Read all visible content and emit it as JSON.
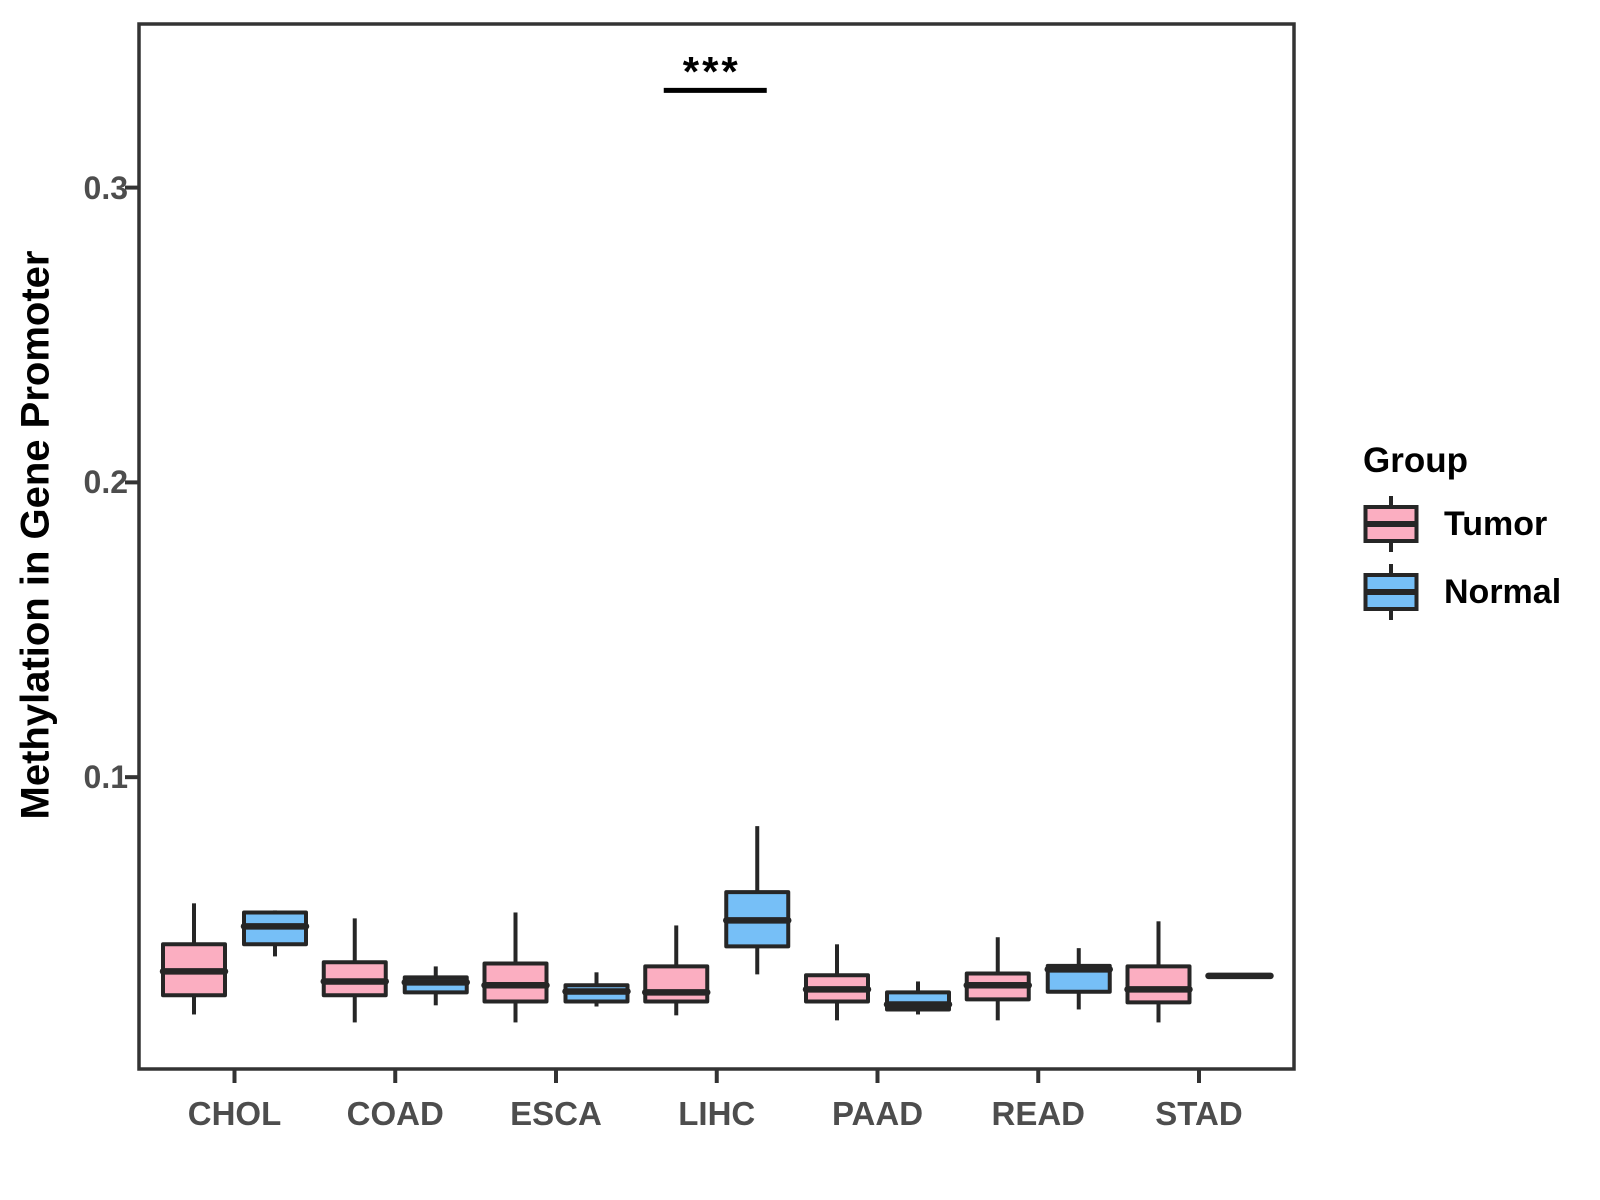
{
  "figure": {
    "background": "#FFFFFF"
  },
  "chart_data": {
    "type": "boxplot",
    "title": "",
    "xlabel": "",
    "ylabel": "Methylation in Gene Promoter",
    "grid": false,
    "categories": [
      "CHOL",
      "COAD",
      "ESCA",
      "LIHC",
      "PAAD",
      "READ",
      "STAD"
    ],
    "yticks": [
      {
        "value": 0.1,
        "label": "0.1"
      },
      {
        "value": 0.2,
        "label": "0.2"
      },
      {
        "value": 0.3,
        "label": "0.3"
      }
    ],
    "ylim": [
      0.001,
      0.3555
    ],
    "legend": {
      "title": "Group",
      "position": "right"
    },
    "groups": [
      {
        "name": "Tumor",
        "color": "#FBAEC1"
      },
      {
        "name": "Normal",
        "color": "#76BFF7"
      }
    ],
    "series": [
      {
        "group": "Tumor",
        "stats": [
          {
            "category": "CHOL",
            "low": 0.0195,
            "q1": 0.026,
            "median": 0.0341,
            "q3": 0.0433,
            "high": 0.0572
          },
          {
            "category": "COAD",
            "low": 0.0168,
            "q1": 0.026,
            "median": 0.0307,
            "q3": 0.0372,
            "high": 0.0521
          },
          {
            "category": "ESCA",
            "low": 0.0168,
            "q1": 0.0239,
            "median": 0.0294,
            "q3": 0.0368,
            "high": 0.0541
          },
          {
            "category": "LIHC",
            "low": 0.0192,
            "q1": 0.0239,
            "median": 0.027,
            "q3": 0.0358,
            "high": 0.0497
          },
          {
            "category": "PAAD",
            "low": 0.0175,
            "q1": 0.0239,
            "median": 0.028,
            "q3": 0.0328,
            "high": 0.0433
          },
          {
            "category": "READ",
            "low": 0.0175,
            "q1": 0.0246,
            "median": 0.0294,
            "q3": 0.0334,
            "high": 0.0457
          },
          {
            "category": "STAD",
            "low": 0.0168,
            "q1": 0.0236,
            "median": 0.028,
            "q3": 0.0358,
            "high": 0.0511
          }
        ]
      },
      {
        "group": "Normal",
        "stats": [
          {
            "category": "CHOL",
            "low": 0.0392,
            "q1": 0.0433,
            "median": 0.0494,
            "q3": 0.0541,
            "high": 0.0548
          },
          {
            "category": "COAD",
            "low": 0.0226,
            "q1": 0.027,
            "median": 0.0304,
            "q3": 0.0321,
            "high": 0.0358
          },
          {
            "category": "ESCA",
            "low": 0.0222,
            "q1": 0.0239,
            "median": 0.0273,
            "q3": 0.0294,
            "high": 0.0338
          },
          {
            "category": "LIHC",
            "low": 0.0331,
            "q1": 0.0426,
            "median": 0.0514,
            "q3": 0.061,
            "high": 0.0834
          },
          {
            "category": "PAAD",
            "low": 0.0195,
            "q1": 0.0212,
            "median": 0.0229,
            "q3": 0.027,
            "high": 0.0307
          },
          {
            "category": "READ",
            "low": 0.0212,
            "q1": 0.0272,
            "median": 0.0348,
            "q3": 0.036,
            "high": 0.042
          },
          {
            "category": "STAD",
            "low": 0.0326,
            "q1": 0.0326,
            "median": 0.0326,
            "q3": 0.0326,
            "high": 0.0326
          }
        ]
      }
    ],
    "annotation": {
      "label": "***",
      "category": "LIHC",
      "bar_y": 0.333
    },
    "colors": {
      "box_border": "#262626",
      "axis": "#333333",
      "tick_label": "#4D4D4D",
      "annotation": "#000000"
    }
  }
}
